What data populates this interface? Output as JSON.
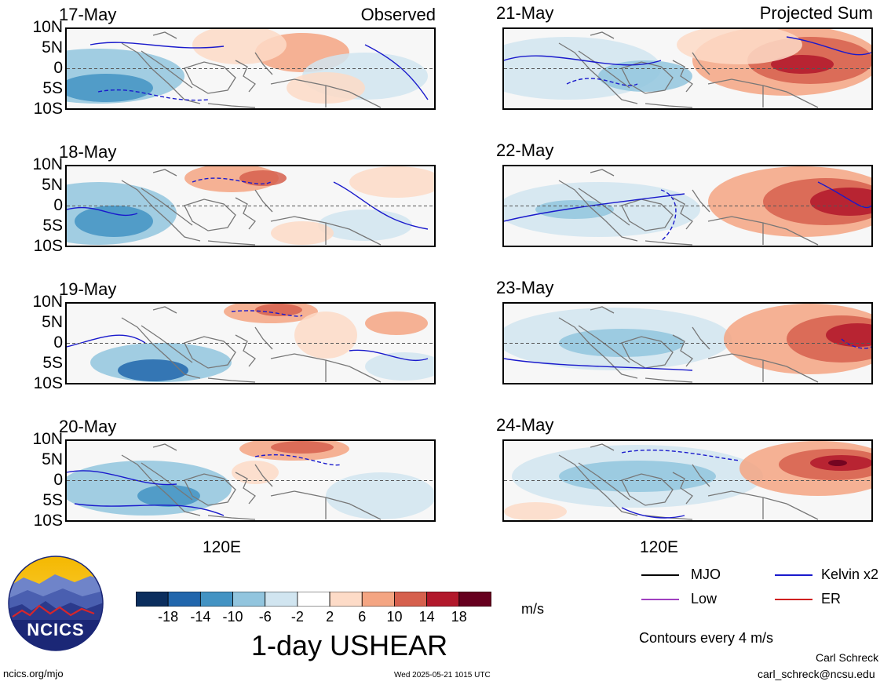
{
  "headers": {
    "left": "Observed",
    "right": "Projected Sum"
  },
  "panels": {
    "left": [
      {
        "date": "17-May"
      },
      {
        "date": "18-May"
      },
      {
        "date": "19-May"
      },
      {
        "date": "20-May"
      }
    ],
    "right": [
      {
        "date": "21-May"
      },
      {
        "date": "22-May"
      },
      {
        "date": "23-May"
      },
      {
        "date": "24-May"
      }
    ]
  },
  "lat_labels": [
    "10N",
    "5N",
    "0",
    "5S",
    "10S"
  ],
  "lon_label": "120E",
  "legend": {
    "mjo": "MJO",
    "kelvin": "Kelvin x2",
    "low": "Low",
    "er": "ER",
    "contours_note": "Contours every 4 m/s",
    "colors": {
      "mjo": "#000000",
      "kelvin": "#1a1acc",
      "low": "#a040c0",
      "er": "#d02020"
    }
  },
  "colorbar": {
    "ticks": [
      "-18",
      "-14",
      "-10",
      "-6",
      "-2",
      "2",
      "6",
      "10",
      "14",
      "18"
    ],
    "colors": [
      "#0b2e5e",
      "#2166ac",
      "#4393c3",
      "#92c5de",
      "#d1e5f0",
      "#ffffff",
      "#fddbc7",
      "#f4a582",
      "#d6604d",
      "#b2182b",
      "#67001f"
    ],
    "unit": "m/s",
    "title": "1-day USHEAR"
  },
  "logo": {
    "text": "NCICS"
  },
  "footer": {
    "left": "ncics.org/mjo",
    "center": "Wed 2025-05-21 1015 UTC",
    "right_name": "Carl Schreck",
    "right_email": "carl_schreck@ncsu.edu"
  }
}
